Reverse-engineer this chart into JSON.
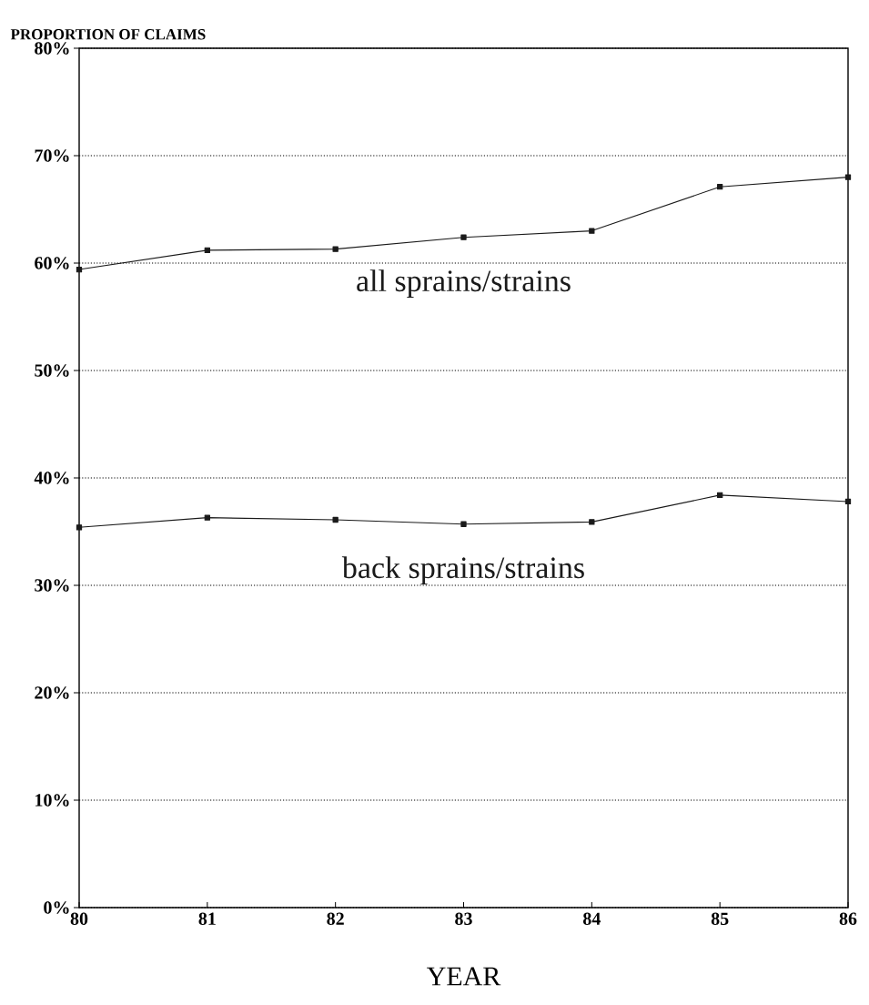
{
  "chart_data": {
    "type": "line",
    "ylabel": "PROPORTION OF CLAIMS",
    "xlabel": "YEAR",
    "x": [
      80,
      81,
      82,
      83,
      84,
      85,
      86
    ],
    "series": [
      {
        "name": "all sprains/strains",
        "color": "#1a1a1a",
        "values": [
          59.4,
          61.2,
          61.3,
          62.4,
          63.0,
          67.1,
          68.0
        ]
      },
      {
        "name": "back sprains/strains",
        "color": "#1a1a1a",
        "values": [
          35.4,
          36.3,
          36.1,
          35.7,
          35.9,
          38.4,
          37.8
        ]
      }
    ],
    "xlim": [
      80,
      86
    ],
    "xticks": [
      80,
      81,
      82,
      83,
      84,
      85,
      86
    ],
    "ylim": [
      0,
      80
    ],
    "yticks": [
      {
        "value": 0,
        "label": "0%"
      },
      {
        "value": 10,
        "label": "10%"
      },
      {
        "value": 20,
        "label": "20%"
      },
      {
        "value": 30,
        "label": "30%"
      },
      {
        "value": 40,
        "label": "40%"
      },
      {
        "value": 50,
        "label": "50%"
      },
      {
        "value": 60,
        "label": "60%"
      },
      {
        "value": 70,
        "label": "70%"
      },
      {
        "value": 80,
        "label": "80%"
      }
    ],
    "grid": "y",
    "marker": "square",
    "line_style": "solid",
    "legend": false
  }
}
